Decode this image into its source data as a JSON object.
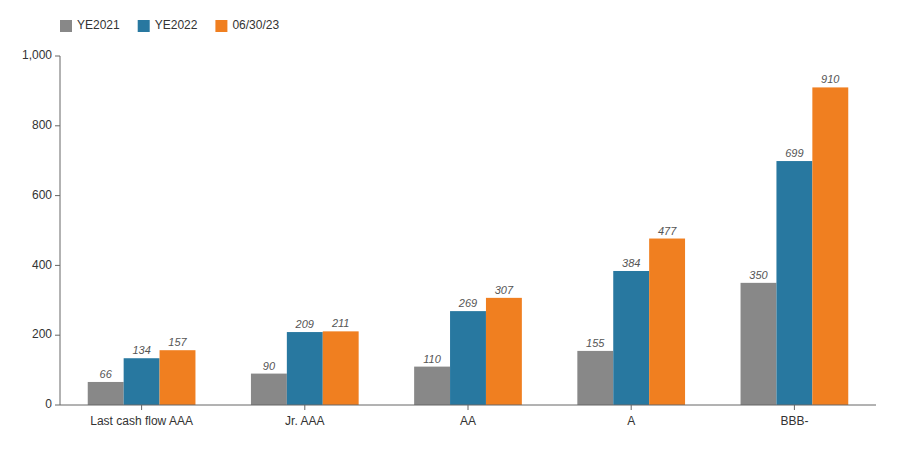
{
  "chart_data": {
    "type": "bar",
    "categories": [
      "Last cash flow AAA",
      "Jr. AAA",
      "AA",
      "A",
      "BBB-"
    ],
    "series": [
      {
        "name": "YE2021",
        "color": "#888888",
        "values": [
          66,
          90,
          110,
          155,
          350
        ]
      },
      {
        "name": "YE2022",
        "color": "#2878a0",
        "values": [
          134,
          209,
          269,
          384,
          699
        ]
      },
      {
        "name": "06/30/23",
        "color": "#f07f20",
        "values": [
          157,
          211,
          307,
          477,
          910
        ]
      }
    ],
    "ylim": [
      0,
      1000
    ],
    "yticks": [
      0,
      200,
      400,
      600,
      800,
      {
        "value": 1000,
        "label": "1,000"
      }
    ],
    "grid": false,
    "legend": "upper left",
    "data_labels": true
  }
}
